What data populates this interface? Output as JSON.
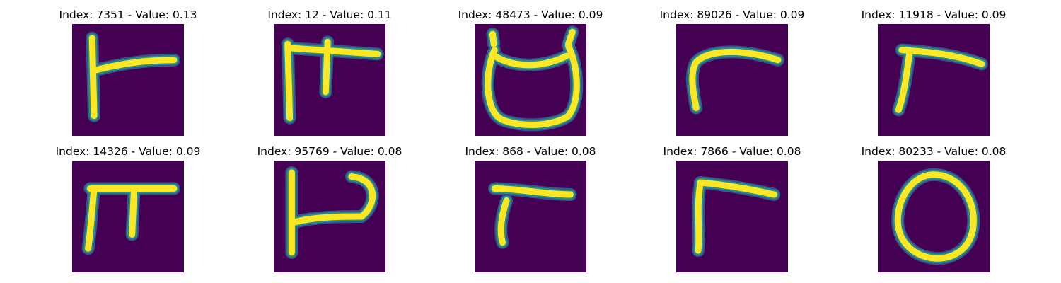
{
  "chart_data": {
    "type": "image-grid",
    "rows": 2,
    "cols": 5,
    "colormap": "viridis",
    "colors": {
      "background": "#440154",
      "stroke": "#fde725",
      "edge_mid": "#21918c",
      "edge_dark": "#3b528b"
    },
    "panels": [
      {
        "title": "Index: 7351 - Value: 0.13",
        "index": 7351,
        "value": 0.13
      },
      {
        "title": "Index: 12 - Value: 0.11",
        "index": 12,
        "value": 0.11
      },
      {
        "title": "Index: 48473 - Value: 0.09",
        "index": 48473,
        "value": 0.09
      },
      {
        "title": "Index: 89026 - Value: 0.09",
        "index": 89026,
        "value": 0.09
      },
      {
        "title": "Index: 11918 - Value: 0.09",
        "index": 11918,
        "value": 0.09
      },
      {
        "title": "Index: 14326 - Value: 0.09",
        "index": 14326,
        "value": 0.09
      },
      {
        "title": "Index: 95769 - Value: 0.08",
        "index": 95769,
        "value": 0.08
      },
      {
        "title": "Index: 868 - Value: 0.08",
        "index": 868,
        "value": 0.08
      },
      {
        "title": "Index: 7866 - Value: 0.08",
        "index": 7866,
        "value": 0.08
      },
      {
        "title": "Index: 80233 - Value: 0.08",
        "index": 80233,
        "value": 0.08
      }
    ]
  }
}
